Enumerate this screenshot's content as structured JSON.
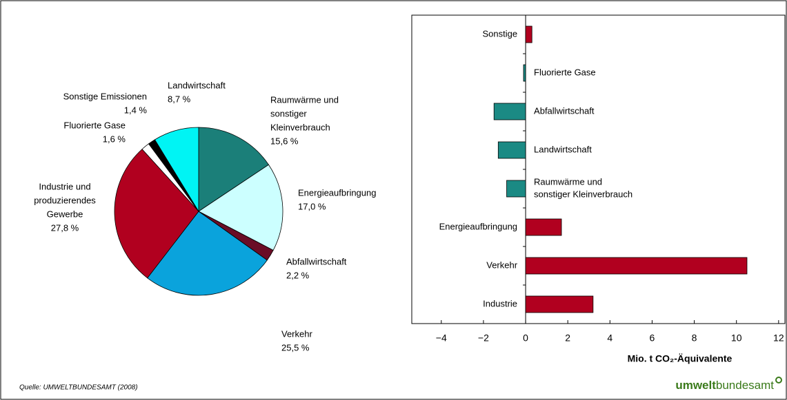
{
  "chart_data": [
    {
      "type": "pie",
      "categories": [
        [
          "Raumwärme und",
          "sonstiger",
          "Kleinverbrauch"
        ],
        "Energieaufbringung",
        "Abfallwirtschaft",
        "Verkehr",
        [
          "Industrie und",
          "produzierendes",
          "Gewerbe"
        ],
        "Fluorierte Gase",
        "Sonstige Emissionen",
        "Landwirtschaft"
      ],
      "values": [
        15.6,
        17.0,
        2.2,
        25.5,
        27.8,
        1.6,
        1.4,
        8.7
      ],
      "value_labels": [
        "15,6 %",
        "17,0 %",
        "2,2 %",
        "25,5 %",
        "27,8 %",
        "1,6 %",
        "1,4 %",
        "8,7 %"
      ],
      "colors": [
        "#1b7f79",
        "#ccffff",
        "#6a0d26",
        "#0aa3dc",
        "#b1001f",
        "#ffffff",
        "#000000",
        "#00f4f4"
      ]
    },
    {
      "type": "hbar",
      "categories": [
        "Sonstige",
        "Fluorierte Gase",
        "Abfallwirtschaft",
        "Landwirtschaft",
        [
          "Raumwärme und",
          "sonstiger Kleinverbrauch"
        ],
        "Energieaufbringung",
        "Verkehr",
        "Industrie"
      ],
      "values": [
        0.3,
        -0.1,
        -1.5,
        -1.3,
        -0.9,
        1.7,
        10.5,
        3.2
      ],
      "colors": [
        "#b1001f",
        "#1b8a84",
        "#1b8a84",
        "#1b8a84",
        "#1b8a84",
        "#b1001f",
        "#b1001f",
        "#b1001f"
      ],
      "xlabel": "Mio. t CO₂-Äquivalente",
      "xlim": [
        -5.4,
        12.3
      ],
      "xticks": [
        {
          "value": -4,
          "label": "−4"
        },
        {
          "value": -2,
          "label": "−2"
        },
        0,
        2,
        4,
        6,
        8,
        10,
        12
      ]
    }
  ],
  "source": "Quelle: UMWELTBUNDESAMT (2008)",
  "logo": {
    "bold": "umwelt",
    "regular": "bundesamt"
  }
}
